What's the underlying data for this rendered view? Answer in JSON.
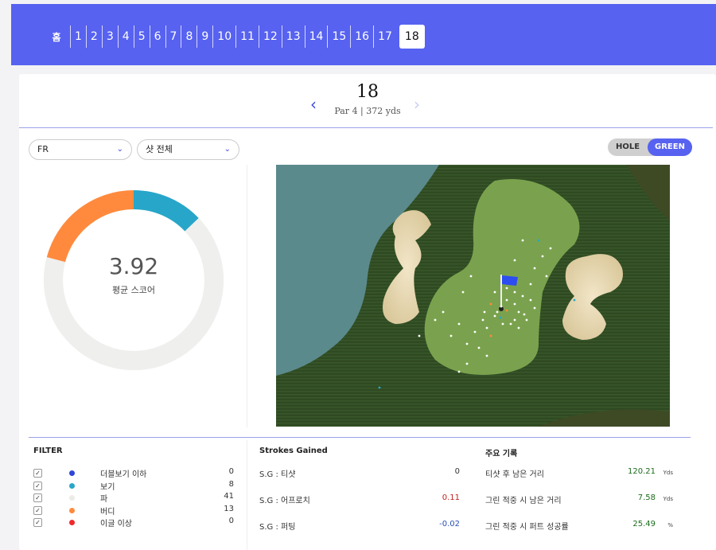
{
  "nav": {
    "home_icon": "home-icon",
    "holes": [
      "1",
      "2",
      "3",
      "4",
      "5",
      "6",
      "7",
      "8",
      "9",
      "10",
      "11",
      "12",
      "13",
      "14",
      "15",
      "16",
      "17"
    ],
    "active_hole": "18"
  },
  "hole": {
    "number": "18",
    "info": "Par 4 | 372 yds"
  },
  "filters": {
    "club": "FR",
    "shot": "샷 전체"
  },
  "view_toggle": {
    "hole": "HOLE",
    "green": "GREEN",
    "selected": "GREEN"
  },
  "gauge": {
    "value": "3.92",
    "label": "평균 스코어",
    "segments": [
      {
        "name": "보기",
        "fraction": 0.1286,
        "color": "#27a6c9"
      },
      {
        "name": "버디",
        "fraction": 0.2089,
        "color": "#ff8a3d"
      },
      {
        "name": "파",
        "fraction": 0.6625,
        "color": "#efefed"
      }
    ]
  },
  "filter_panel": {
    "title": "FILTER",
    "rows": [
      {
        "label": "더블보기 이하",
        "count": "0",
        "color": "#2f46d8"
      },
      {
        "label": "보기",
        "count": "8",
        "color": "#27a6c9"
      },
      {
        "label": "파",
        "count": "41",
        "color": "#ecebe6"
      },
      {
        "label": "버디",
        "count": "13",
        "color": "#ff8a3d"
      },
      {
        "label": "이글 이상",
        "count": "0",
        "color": "#ee2a2a"
      }
    ]
  },
  "strokes_gained": {
    "title": "Strokes Gained",
    "rows": [
      {
        "label": "S.G : 티샷",
        "value": "0",
        "color": "#333333"
      },
      {
        "label": "S.G : 어프로치",
        "value": "0.11",
        "color": "#c41e1e"
      },
      {
        "label": "S.G : 퍼팅",
        "value": "-0.02",
        "color": "#2a4fb8"
      }
    ]
  },
  "records": {
    "title": "주요 기록",
    "rows": [
      {
        "label": "티샷 후 남은 거리",
        "value": "120.21",
        "unit": "Yds"
      },
      {
        "label": "그린 적중 시 남은 거리",
        "value": "7.58",
        "unit": "Yds"
      },
      {
        "label": "그린 적중 시 퍼트 성공률",
        "value": "25.49",
        "unit": "%"
      }
    ]
  }
}
